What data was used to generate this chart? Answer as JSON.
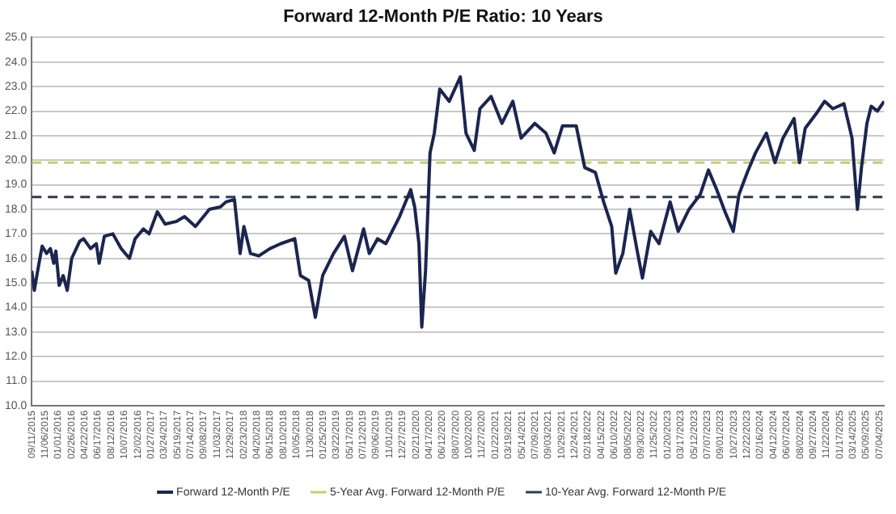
{
  "chart_data": {
    "type": "line",
    "title": "Forward 12-Month P/E Ratio: 10 Years",
    "x": [
      "2015-09-11",
      "2015-09-22",
      "2015-10-08",
      "2015-10-25",
      "2015-11-13",
      "2015-11-29",
      "2015-12-13",
      "2015-12-22",
      "2016-01-05",
      "2016-01-22",
      "2016-02-08",
      "2016-02-27",
      "2016-04-01",
      "2016-04-17",
      "2016-05-17",
      "2016-06-10",
      "2016-06-22",
      "2016-07-14",
      "2016-08-19",
      "2016-09-23",
      "2016-10-28",
      "2016-11-21",
      "2016-12-26",
      "2017-01-19",
      "2017-02-23",
      "2017-03-28",
      "2017-05-13",
      "2017-06-18",
      "2017-08-03",
      "2017-10-01",
      "2017-11-17",
      "2017-12-10",
      "2018-01-15",
      "2018-02-08",
      "2018-02-24",
      "2018-03-24",
      "2018-04-28",
      "2018-06-14",
      "2018-07-30",
      "2018-09-27",
      "2018-10-21",
      "2018-11-25",
      "2018-12-23",
      "2019-01-23",
      "2019-03-10",
      "2019-04-25",
      "2019-05-29",
      "2019-07-15",
      "2019-08-08",
      "2019-09-12",
      "2019-10-17",
      "2019-12-14",
      "2020-01-30",
      "2020-02-16",
      "2020-03-05",
      "2020-03-17",
      "2020-04-02",
      "2020-04-21",
      "2020-05-09",
      "2020-06-01",
      "2020-07-11",
      "2020-08-27",
      "2020-09-20",
      "2020-10-25",
      "2020-11-18",
      "2021-01-04",
      "2021-02-19",
      "2021-04-06",
      "2021-05-11",
      "2021-07-08",
      "2021-08-24",
      "2021-09-28",
      "2021-11-02",
      "2021-12-30",
      "2022-02-04",
      "2022-03-21",
      "2022-04-25",
      "2022-05-29",
      "2022-06-15",
      "2022-07-15",
      "2022-08-13",
      "2022-09-12",
      "2022-10-06",
      "2022-11-10",
      "2022-12-15",
      "2023-01-31",
      "2023-03-06",
      "2023-04-21",
      "2023-06-07",
      "2023-07-12",
      "2023-08-16",
      "2023-09-20",
      "2023-10-25",
      "2023-11-18",
      "2023-12-23",
      "2024-01-27",
      "2024-03-13",
      "2024-04-18",
      "2024-05-22",
      "2024-07-08",
      "2024-07-31",
      "2024-08-24",
      "2024-10-10",
      "2024-11-14",
      "2024-12-19",
      "2025-02-04",
      "2025-03-10",
      "2025-04-02",
      "2025-04-19",
      "2025-05-12",
      "2025-05-30",
      "2025-06-25",
      "2025-07-24"
    ],
    "series": [
      {
        "name": "Forward 12-Month P/E",
        "color": "#1b2550",
        "values": [
          15.5,
          14.7,
          15.6,
          16.5,
          16.2,
          16.4,
          15.8,
          16.3,
          14.9,
          15.3,
          14.7,
          16.0,
          16.7,
          16.8,
          16.4,
          16.6,
          15.8,
          16.9,
          17.0,
          16.4,
          16.0,
          16.8,
          17.2,
          17.0,
          17.9,
          17.4,
          17.5,
          17.7,
          17.3,
          18.0,
          18.1,
          18.3,
          18.4,
          16.2,
          17.3,
          16.2,
          16.1,
          16.4,
          16.6,
          16.8,
          15.3,
          15.1,
          13.6,
          15.3,
          16.2,
          16.9,
          15.5,
          17.2,
          16.2,
          16.8,
          16.6,
          17.7,
          18.8,
          18.1,
          16.6,
          13.2,
          15.5,
          20.3,
          21.1,
          22.9,
          22.4,
          23.4,
          21.1,
          20.4,
          22.1,
          22.6,
          21.5,
          22.4,
          20.9,
          21.5,
          21.1,
          20.3,
          21.4,
          21.4,
          19.7,
          19.5,
          18.3,
          17.3,
          15.4,
          16.2,
          18.0,
          16.4,
          15.2,
          17.1,
          16.6,
          18.3,
          17.1,
          18.0,
          18.6,
          19.6,
          18.8,
          17.9,
          17.1,
          18.6,
          19.5,
          20.3,
          21.1,
          19.9,
          20.9,
          21.7,
          19.9,
          21.3,
          21.9,
          22.4,
          22.1,
          22.3,
          20.9,
          18.0,
          19.7,
          21.5,
          22.2,
          22.0,
          22.4
        ]
      }
    ],
    "ref_lines": [
      {
        "axis": "y",
        "value": 19.9,
        "label": "5-Year Avg. Forward 12-Month P/E",
        "color": "#c6cf6a",
        "line_style": "dashed"
      },
      {
        "axis": "y",
        "value": 18.5,
        "label": "10-Year Avg. Forward 12-Month P/E",
        "color": "#2e3d52",
        "line_style": "dashed"
      }
    ],
    "xlim": [
      "2015-09-11",
      "2025-07-24"
    ],
    "xticks": [
      {
        "value": "2015-09-11",
        "label": "09/11/2015"
      },
      {
        "value": "2015-11-06",
        "label": "11/06/2015"
      },
      {
        "value": "2016-01-01",
        "label": "01/01/2016"
      },
      {
        "value": "2016-02-26",
        "label": "02/26/2016"
      },
      {
        "value": "2016-04-22",
        "label": "04/22/2016"
      },
      {
        "value": "2016-06-17",
        "label": "06/17/2016"
      },
      {
        "value": "2016-08-12",
        "label": "08/12/2016"
      },
      {
        "value": "2016-10-07",
        "label": "10/07/2016"
      },
      {
        "value": "2016-12-02",
        "label": "12/02/2016"
      },
      {
        "value": "2017-01-27",
        "label": "01/27/2017"
      },
      {
        "value": "2017-03-24",
        "label": "03/24/2017"
      },
      {
        "value": "2017-05-19",
        "label": "05/19/2017"
      },
      {
        "value": "2017-07-14",
        "label": "07/14/2017"
      },
      {
        "value": "2017-09-08",
        "label": "09/08/2017"
      },
      {
        "value": "2017-11-03",
        "label": "11/03/2017"
      },
      {
        "value": "2017-12-29",
        "label": "12/29/2017"
      },
      {
        "value": "2018-02-23",
        "label": "02/23/2018"
      },
      {
        "value": "2018-04-20",
        "label": "04/20/2018"
      },
      {
        "value": "2018-06-15",
        "label": "06/15/2018"
      },
      {
        "value": "2018-08-10",
        "label": "08/10/2018"
      },
      {
        "value": "2018-10-05",
        "label": "10/05/2018"
      },
      {
        "value": "2018-11-30",
        "label": "11/30/2018"
      },
      {
        "value": "2019-01-25",
        "label": "01/25/2019"
      },
      {
        "value": "2019-03-22",
        "label": "03/22/2019"
      },
      {
        "value": "2019-05-17",
        "label": "05/17/2019"
      },
      {
        "value": "2019-07-12",
        "label": "07/12/2019"
      },
      {
        "value": "2019-09-06",
        "label": "09/06/2019"
      },
      {
        "value": "2019-11-01",
        "label": "11/01/2019"
      },
      {
        "value": "2019-12-27",
        "label": "12/27/2019"
      },
      {
        "value": "2020-02-21",
        "label": "02/21/2020"
      },
      {
        "value": "2020-04-17",
        "label": "04/17/2020"
      },
      {
        "value": "2020-06-12",
        "label": "06/12/2020"
      },
      {
        "value": "2020-08-07",
        "label": "08/07/2020"
      },
      {
        "value": "2020-10-02",
        "label": "10/02/2020"
      },
      {
        "value": "2020-11-27",
        "label": "11/27/2020"
      },
      {
        "value": "2021-01-22",
        "label": "01/22/2021"
      },
      {
        "value": "2021-03-19",
        "label": "03/19/2021"
      },
      {
        "value": "2021-05-14",
        "label": "05/14/2021"
      },
      {
        "value": "2021-07-09",
        "label": "07/09/2021"
      },
      {
        "value": "2021-09-03",
        "label": "09/03/2021"
      },
      {
        "value": "2021-10-29",
        "label": "10/29/2021"
      },
      {
        "value": "2021-12-24",
        "label": "12/24/2021"
      },
      {
        "value": "2022-02-18",
        "label": "02/18/2022"
      },
      {
        "value": "2022-04-15",
        "label": "04/15/2022"
      },
      {
        "value": "2022-06-10",
        "label": "06/10/2022"
      },
      {
        "value": "2022-08-05",
        "label": "08/05/2022"
      },
      {
        "value": "2022-09-30",
        "label": "09/30/2022"
      },
      {
        "value": "2022-11-25",
        "label": "11/25/2022"
      },
      {
        "value": "2023-01-20",
        "label": "01/20/2023"
      },
      {
        "value": "2023-03-17",
        "label": "03/17/2023"
      },
      {
        "value": "2023-05-12",
        "label": "05/12/2023"
      },
      {
        "value": "2023-07-07",
        "label": "07/07/2023"
      },
      {
        "value": "2023-09-01",
        "label": "09/01/2023"
      },
      {
        "value": "2023-10-27",
        "label": "10/27/2023"
      },
      {
        "value": "2023-12-22",
        "label": "12/22/2023"
      },
      {
        "value": "2024-02-16",
        "label": "02/16/2024"
      },
      {
        "value": "2024-04-12",
        "label": "04/12/2024"
      },
      {
        "value": "2024-06-07",
        "label": "06/07/2024"
      },
      {
        "value": "2024-08-02",
        "label": "08/02/2024"
      },
      {
        "value": "2024-09-27",
        "label": "09/27/2024"
      },
      {
        "value": "2024-11-22",
        "label": "11/22/2024"
      },
      {
        "value": "2025-01-17",
        "label": "01/17/2025"
      },
      {
        "value": "2025-03-14",
        "label": "03/14/2025"
      },
      {
        "value": "2025-05-09",
        "label": "05/09/2025"
      },
      {
        "value": "2025-07-04",
        "label": "07/04/2025"
      }
    ],
    "ylim": [
      10,
      25
    ],
    "yticks": [
      {
        "value": 10,
        "label": "10.0"
      },
      {
        "value": 11,
        "label": "11.0"
      },
      {
        "value": 12,
        "label": "12.0"
      },
      {
        "value": 13,
        "label": "13.0"
      },
      {
        "value": 14,
        "label": "14.0"
      },
      {
        "value": 15,
        "label": "15.0"
      },
      {
        "value": 16,
        "label": "16.0"
      },
      {
        "value": 17,
        "label": "17.0"
      },
      {
        "value": 18,
        "label": "18.0"
      },
      {
        "value": 19,
        "label": "19.0"
      },
      {
        "value": 20,
        "label": "20.0"
      },
      {
        "value": 21,
        "label": "21.0"
      },
      {
        "value": 22,
        "label": "22.0"
      },
      {
        "value": 23,
        "label": "23.0"
      },
      {
        "value": 24,
        "label": "24.0"
      },
      {
        "value": 25,
        "label": "25.0"
      }
    ],
    "grid": "y",
    "legend": "bottom",
    "marker": "none",
    "line_style": "solid"
  }
}
